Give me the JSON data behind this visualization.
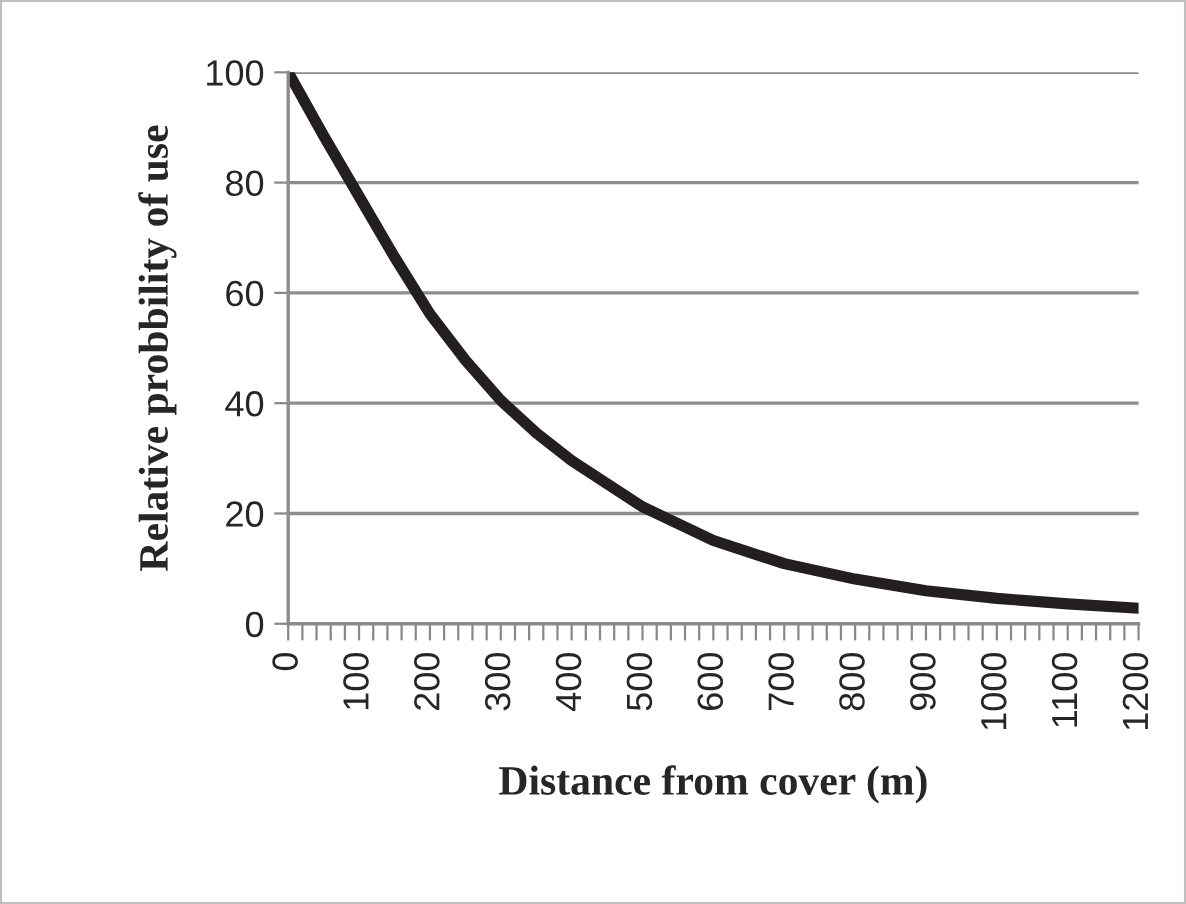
{
  "chart_data": {
    "type": "line",
    "xlabel": "Distance from cover (m)",
    "ylabel": "Relative probbility of use",
    "x": [
      0,
      50,
      100,
      150,
      200,
      250,
      300,
      350,
      400,
      500,
      600,
      700,
      800,
      900,
      1000,
      1100,
      1200
    ],
    "series": [
      {
        "color": "#231f20",
        "values": [
          100,
          88.5,
          77.5,
          66.5,
          56.2,
          47.8,
          40.5,
          34.6,
          29.6,
          21.2,
          15.1,
          10.9,
          8.1,
          6.0,
          4.6,
          3.6,
          2.8
        ]
      }
    ],
    "xlim": [
      0,
      1200
    ],
    "xticks": [
      0,
      {
        "value": 20,
        "label": null
      },
      {
        "value": 40,
        "label": null
      },
      {
        "value": 60,
        "label": null
      },
      {
        "value": 80,
        "label": null
      },
      100,
      {
        "value": 120,
        "label": null
      },
      {
        "value": 140,
        "label": null
      },
      {
        "value": 160,
        "label": null
      },
      {
        "value": 180,
        "label": null
      },
      200,
      {
        "value": 220,
        "label": null
      },
      {
        "value": 240,
        "label": null
      },
      {
        "value": 260,
        "label": null
      },
      {
        "value": 280,
        "label": null
      },
      300,
      {
        "value": 320,
        "label": null
      },
      {
        "value": 340,
        "label": null
      },
      {
        "value": 360,
        "label": null
      },
      {
        "value": 380,
        "label": null
      },
      400,
      {
        "value": 420,
        "label": null
      },
      {
        "value": 440,
        "label": null
      },
      {
        "value": 460,
        "label": null
      },
      {
        "value": 480,
        "label": null
      },
      500,
      {
        "value": 520,
        "label": null
      },
      {
        "value": 540,
        "label": null
      },
      {
        "value": 560,
        "label": null
      },
      {
        "value": 580,
        "label": null
      },
      600,
      {
        "value": 620,
        "label": null
      },
      {
        "value": 640,
        "label": null
      },
      {
        "value": 660,
        "label": null
      },
      {
        "value": 680,
        "label": null
      },
      700,
      {
        "value": 720,
        "label": null
      },
      {
        "value": 740,
        "label": null
      },
      {
        "value": 760,
        "label": null
      },
      {
        "value": 780,
        "label": null
      },
      800,
      {
        "value": 820,
        "label": null
      },
      {
        "value": 840,
        "label": null
      },
      {
        "value": 860,
        "label": null
      },
      {
        "value": 880,
        "label": null
      },
      900,
      {
        "value": 920,
        "label": null
      },
      {
        "value": 940,
        "label": null
      },
      {
        "value": 960,
        "label": null
      },
      {
        "value": 980,
        "label": null
      },
      1000,
      {
        "value": 1020,
        "label": null
      },
      {
        "value": 1040,
        "label": null
      },
      {
        "value": 1060,
        "label": null
      },
      {
        "value": 1080,
        "label": null
      },
      1100,
      {
        "value": 1120,
        "label": null
      },
      {
        "value": 1140,
        "label": null
      },
      {
        "value": 1160,
        "label": null
      },
      {
        "value": 1180,
        "label": null
      },
      1200
    ],
    "ylim": [
      0,
      100
    ],
    "yticks": [
      0,
      20,
      40,
      60,
      80,
      100
    ],
    "grid": "y",
    "marker": "none",
    "line_style": "solid"
  }
}
